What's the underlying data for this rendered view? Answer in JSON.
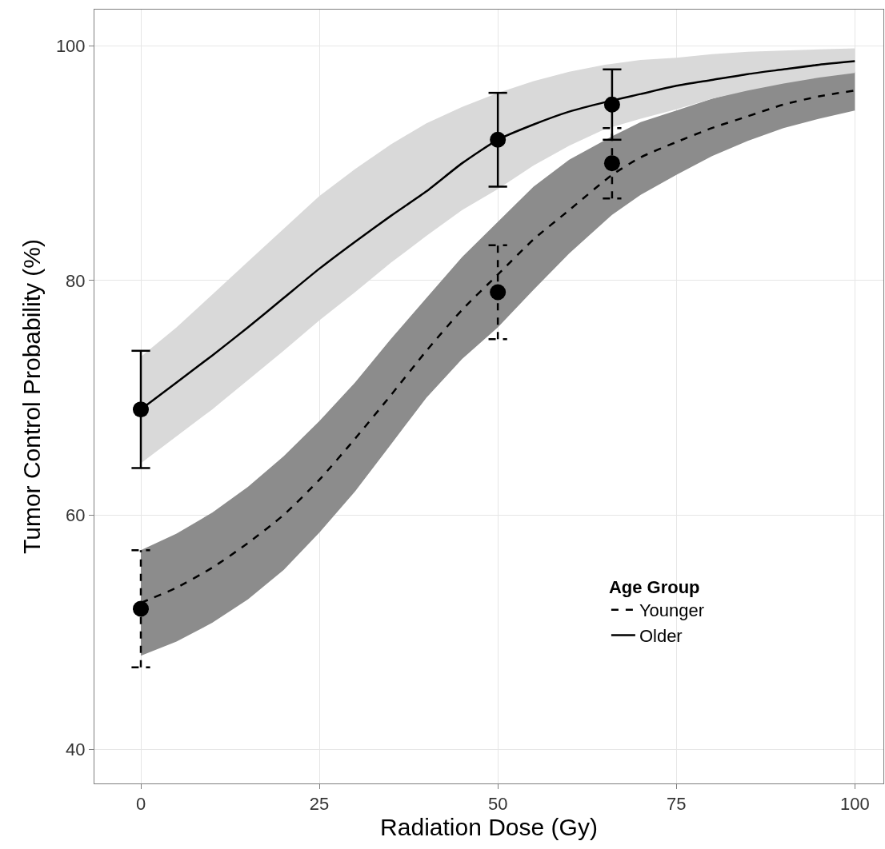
{
  "chart_data": {
    "type": "line",
    "xlabel": "Radiation Dose (Gy)",
    "ylabel": "Tumor Control Probability (%)",
    "legend_title": "Age Group",
    "xlim": [
      -6.5,
      104
    ],
    "ylim": [
      37.1,
      103.1
    ],
    "xticks": [
      0,
      25,
      50,
      75,
      100
    ],
    "yticks": [
      40,
      60,
      80,
      100
    ],
    "grid": true,
    "legend": "bottom right",
    "series": [
      {
        "name": "Younger",
        "color": "#000000",
        "line_style": "dashed",
        "marker": "none",
        "x": [
          0,
          5,
          10,
          15,
          20,
          25,
          30,
          35,
          40,
          45,
          50,
          55,
          60,
          66,
          70,
          75,
          80,
          85,
          90,
          95,
          100
        ],
        "values": [
          52.5,
          53.8,
          55.5,
          57.6,
          60,
          63,
          66.5,
          70.2,
          74,
          77.5,
          80.5,
          83.5,
          86,
          89,
          90.5,
          91.8,
          93,
          94,
          95,
          95.7,
          96.2
        ],
        "lower": [
          48,
          49.2,
          50.8,
          52.8,
          55.3,
          58.5,
          62,
          66,
          70,
          73.3,
          76,
          79.2,
          82.3,
          85.6,
          87.3,
          89,
          90.6,
          91.9,
          93,
          93.8,
          94.5
        ],
        "upper": [
          57,
          58.4,
          60.2,
          62.4,
          65,
          68,
          71.3,
          75,
          78.5,
          82,
          85,
          88,
          90.3,
          92.3,
          93.5,
          94.5,
          95.5,
          96.3,
          97,
          97.4,
          97.8
        ]
      },
      {
        "name": "Older",
        "color": "#000000",
        "line_style": "solid",
        "marker": "none",
        "x": [
          0,
          5,
          10,
          15,
          20,
          25,
          30,
          35,
          40,
          45,
          50,
          55,
          60,
          65,
          70,
          75,
          80,
          85,
          90,
          95,
          100
        ],
        "values": [
          69,
          71.3,
          73.6,
          76,
          78.5,
          81,
          83.3,
          85.5,
          87.6,
          90,
          92,
          93.3,
          94.4,
          95.2,
          95.9,
          96.6,
          97.1,
          97.6,
          98,
          98.4,
          98.7
        ],
        "lower": [
          64.4,
          66.7,
          69,
          71.5,
          74,
          76.6,
          79,
          81.5,
          83.8,
          86,
          87.8,
          89.8,
          91.5,
          92.9,
          93.8,
          94.6,
          95.5,
          96.2,
          96.8,
          97.3,
          97.7
        ],
        "upper": [
          73.5,
          76,
          78.8,
          81.6,
          84.4,
          87.2,
          89.5,
          91.6,
          93.4,
          94.8,
          96,
          97,
          97.8,
          98.4,
          98.8,
          99,
          99.3,
          99.5,
          99.6,
          99.7,
          99.8
        ]
      },
      {
        "type": "scatter",
        "color": "#000000",
        "marker": "circle",
        "line_style": "dashed",
        "x": [
          0,
          50,
          66
        ],
        "values": [
          52,
          79,
          90
        ],
        "errors": [
          [
            47,
            57
          ],
          [
            75,
            83
          ],
          [
            87,
            93
          ]
        ]
      },
      {
        "type": "scatter",
        "color": "#000000",
        "marker": "circle",
        "line_style": "solid",
        "x": [
          0,
          50,
          66
        ],
        "values": [
          69,
          92,
          95
        ],
        "errors": [
          [
            64,
            74
          ],
          [
            88,
            96
          ],
          [
            92,
            98
          ]
        ]
      }
    ]
  }
}
